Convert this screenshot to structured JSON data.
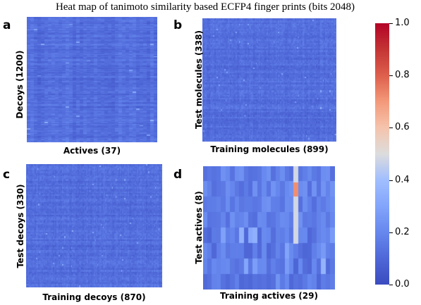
{
  "chart_data": {
    "type": "heatmap",
    "title": "Heat map of tanimoto similarity based ECFP4 finger prints (bits 2048)",
    "colormap": "coolwarm",
    "value_range": [
      0.0,
      1.0
    ],
    "colorbar": {
      "ticks": [
        "0.0",
        "0.2",
        "0.4",
        "0.6",
        "0.8",
        "1.0"
      ],
      "tick_values": [
        0.0,
        0.2,
        0.4,
        0.6,
        0.8,
        1.0
      ]
    },
    "panels": [
      {
        "letter": "a",
        "xlabel": "Actives (37)",
        "ylabel": "Decoys (1200)",
        "typical_value": 0.12,
        "approx_range": [
          0.05,
          0.3
        ]
      },
      {
        "letter": "b",
        "xlabel": "Training molecules (899)",
        "ylabel": "Test molecules (338)",
        "typical_value": 0.12,
        "approx_range": [
          0.05,
          0.25
        ]
      },
      {
        "letter": "c",
        "xlabel": "Training decoys (870)",
        "ylabel": "Test decoys (330)",
        "typical_value": 0.12,
        "approx_range": [
          0.05,
          0.25
        ]
      },
      {
        "letter": "d",
        "xlabel": "Training actives (29)",
        "ylabel": "Test actives (8)",
        "typical_value": 0.15,
        "approx_range": [
          0.05,
          0.72
        ],
        "notable_cells": [
          {
            "row": 1,
            "col": 20,
            "value": 0.72
          },
          {
            "row": 0,
            "col": 20,
            "value": 0.48
          },
          {
            "row": 2,
            "col": 20,
            "value": 0.48
          },
          {
            "row": 3,
            "col": 20,
            "value": 0.48
          },
          {
            "row": 4,
            "col": 20,
            "value": 0.48
          }
        ]
      }
    ]
  }
}
